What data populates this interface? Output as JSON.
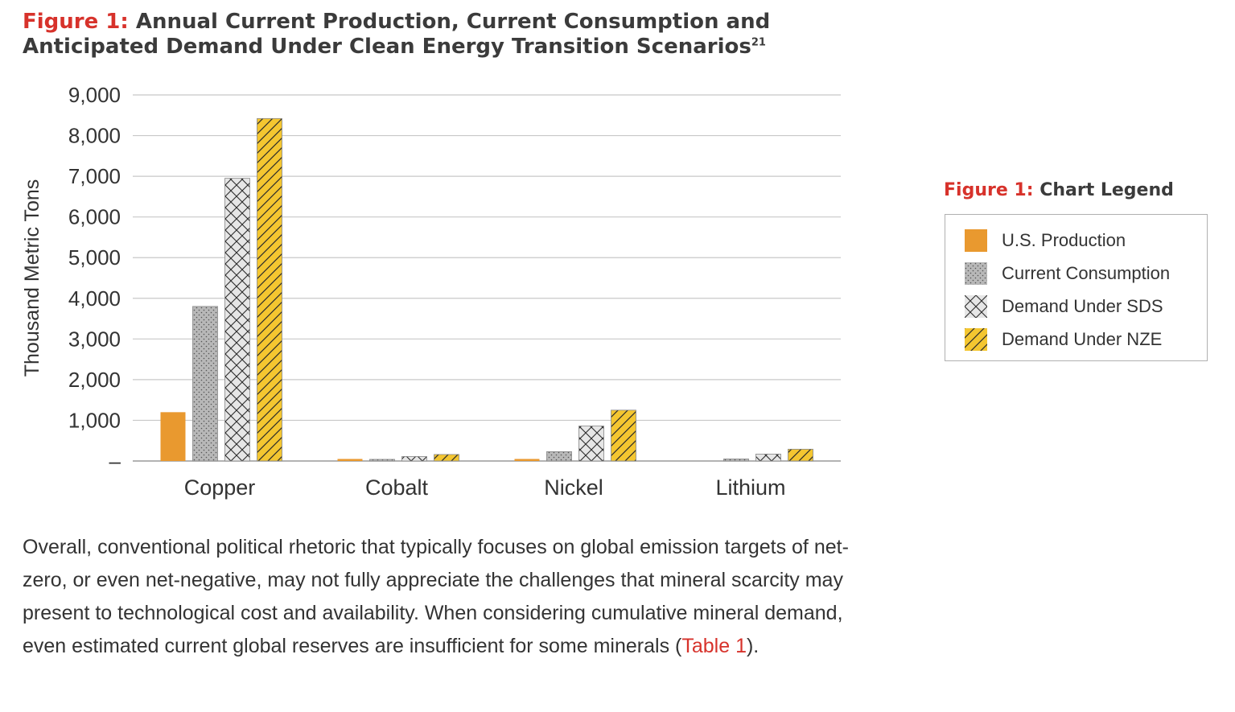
{
  "figure": {
    "label": "Figure 1:",
    "title": "Annual Current Production, Current Consumption and Anticipated Demand Under Clean Energy Transition Scenarios",
    "footnote": "21"
  },
  "legend": {
    "label": "Figure 1:",
    "title": "Chart Legend"
  },
  "colors": {
    "accent_red": "#d7322b",
    "us_production": "#e9992f",
    "current_consumption": "#b8b8b8",
    "demand_sds": "#e6e6e6",
    "demand_nze": "#f4c630"
  },
  "chart_data": {
    "type": "bar",
    "title": "",
    "xlabel": "",
    "ylabel": "Thousand Metric Tons",
    "ylim": [
      0,
      9000
    ],
    "y_ticks": [
      0,
      1000,
      2000,
      3000,
      4000,
      5000,
      6000,
      7000,
      8000,
      9000
    ],
    "y_tick_labels": [
      "–",
      "1,000",
      "2,000",
      "3,000",
      "4,000",
      "5,000",
      "6,000",
      "7,000",
      "8,000",
      "9,000"
    ],
    "grid": true,
    "legend_position": "right",
    "categories": [
      "Copper",
      "Cobalt",
      "Nickel",
      "Lithium"
    ],
    "series": [
      {
        "name": "U.S. Production",
        "pattern": "solid",
        "color": "#e9992f",
        "values": [
          1200,
          50,
          50,
          0
        ]
      },
      {
        "name": "Current Consumption",
        "pattern": "dots",
        "color": "#b8b8b8",
        "values": [
          3800,
          40,
          230,
          50
        ]
      },
      {
        "name": "Demand Under SDS",
        "pattern": "crosshatch",
        "color": "#e6e6e6",
        "values": [
          6950,
          110,
          860,
          170
        ]
      },
      {
        "name": "Demand Under NZE",
        "pattern": "diagonal",
        "color": "#f4c630",
        "values": [
          8420,
          160,
          1250,
          290
        ]
      }
    ]
  },
  "paragraph": {
    "text_before": "Overall, conventional political rhetoric that typically focuses on global emission targets of net-zero, or even net-negative, may not fully appreciate the challenges that mineral scarcity may present to technological cost and availability. When considering cumulative mineral demand, even estimated current global reserves are insufficient for some minerals (",
    "link": "Table 1",
    "text_after": ")."
  }
}
